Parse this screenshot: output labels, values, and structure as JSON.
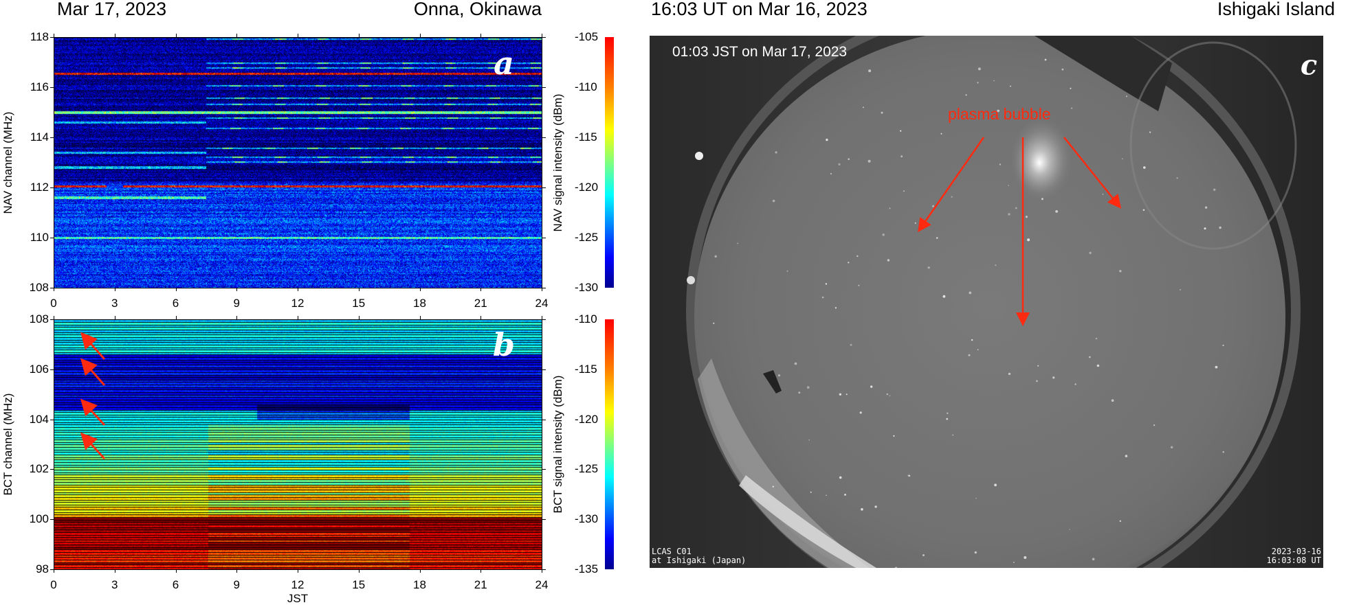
{
  "panel_ab": {
    "date_title": "Mar 17, 2023",
    "location_title": "Onna, Okinawa"
  },
  "panel_c": {
    "ut_title": "16:03 UT on Mar 16, 2023",
    "location_title": "Ishigaki Island",
    "jst_overlay": "01:03 JST on Mar 17, 2023",
    "panel_label": "c",
    "annotation": "plasma bubble",
    "annotation_color": "#ff2a10",
    "camera_id": "LCAS C01",
    "camera_site": "at Ishigaki (Japan)",
    "stamp_date": "2023-03-16",
    "stamp_time": "16:03:08 UT"
  },
  "chart_data": [
    {
      "type": "heatmap",
      "panel_label": "a",
      "xlabel": "",
      "ylabel": "NAV channel (MHz)",
      "colorbar_label": "NAV signal intensity (dBm)",
      "xlim": [
        0,
        24
      ],
      "ylim": [
        108,
        118
      ],
      "xticks": [
        "0",
        "3",
        "6",
        "9",
        "12",
        "15",
        "18",
        "21",
        "24"
      ],
      "yticks": [
        "108",
        "110",
        "112",
        "114",
        "116",
        "118"
      ],
      "clim": [
        -130,
        -105
      ],
      "cticks": [
        "-105",
        "-110",
        "-115",
        "-120",
        "-125",
        "-130"
      ],
      "colormap": "jet",
      "strong_channels_mhz": [
        116.55,
        112.05
      ]
    },
    {
      "type": "heatmap",
      "panel_label": "b",
      "xlabel": "JST",
      "ylabel": "BCT channel (MHz)",
      "colorbar_label": "BCT signal intensity (dBm)",
      "xlim": [
        0,
        24
      ],
      "ylim": [
        98,
        108
      ],
      "xticks": [
        "0",
        "3",
        "6",
        "9",
        "12",
        "15",
        "18",
        "21",
        "24"
      ],
      "yticks": [
        "98",
        "100",
        "102",
        "104",
        "106",
        "108"
      ],
      "clim": [
        -135,
        -110
      ],
      "cticks": [
        "-110",
        "-115",
        "-120",
        "-125",
        "-130",
        "-135"
      ],
      "colormap": "jet",
      "annotation_color": "#ff2a10",
      "arrow_targets_mhz": [
        107.5,
        106.4,
        104.8,
        103.5
      ]
    }
  ]
}
